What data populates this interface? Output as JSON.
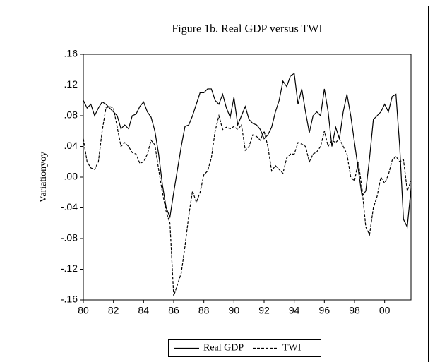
{
  "chart_data": {
    "type": "line",
    "title": "Figure 1b. Real GDP versus TWI",
    "y_label": "Variationyoy",
    "x": [
      1980,
      1980.25,
      1980.5,
      1980.75,
      1981,
      1981.25,
      1981.5,
      1981.75,
      1982,
      1982.25,
      1982.5,
      1982.75,
      1983,
      1983.25,
      1983.5,
      1983.75,
      1984,
      1984.25,
      1984.5,
      1984.75,
      1985,
      1985.25,
      1985.5,
      1985.75,
      1986,
      1986.25,
      1986.5,
      1986.75,
      1987,
      1987.25,
      1987.5,
      1987.75,
      1988,
      1988.25,
      1988.5,
      1988.75,
      1989,
      1989.25,
      1989.5,
      1989.75,
      1990,
      1990.25,
      1990.5,
      1990.75,
      1991,
      1991.25,
      1991.5,
      1991.75,
      1992,
      1992.25,
      1992.5,
      1992.75,
      1993,
      1993.25,
      1993.5,
      1993.75,
      1994,
      1994.25,
      1994.5,
      1994.75,
      1995,
      1995.25,
      1995.5,
      1995.75,
      1996,
      1996.25,
      1996.5,
      1996.75,
      1997,
      1997.25,
      1997.5,
      1997.75,
      1998,
      1998.25,
      1998.5,
      1998.75,
      1999,
      1999.25,
      1999.5,
      1999.75,
      2000,
      2000.25,
      2000.5,
      2000.75,
      2001,
      2001.25,
      2001.5,
      2001.75
    ],
    "series": [
      {
        "name": "Real GDP",
        "color": "#000000",
        "dash": "solid",
        "values": [
          0.1,
          0.09,
          0.095,
          0.08,
          0.09,
          0.098,
          0.095,
          0.09,
          0.085,
          0.08,
          0.063,
          0.068,
          0.063,
          0.08,
          0.082,
          0.092,
          0.098,
          0.085,
          0.078,
          0.06,
          0.03,
          -0.01,
          -0.04,
          -0.052,
          -0.02,
          0.01,
          0.04,
          0.066,
          0.068,
          0.08,
          0.095,
          0.11,
          0.11,
          0.115,
          0.115,
          0.1,
          0.095,
          0.108,
          0.09,
          0.078,
          0.104,
          0.068,
          0.08,
          0.092,
          0.075,
          0.07,
          0.068,
          0.062,
          0.05,
          0.055,
          0.065,
          0.085,
          0.1,
          0.125,
          0.118,
          0.132,
          0.135,
          0.095,
          0.115,
          0.085,
          0.058,
          0.08,
          0.085,
          0.08,
          0.115,
          0.085,
          0.04,
          0.065,
          0.05,
          0.085,
          0.108,
          0.08,
          0.045,
          0.01,
          -0.025,
          -0.018,
          0.025,
          0.075,
          0.08,
          0.085,
          0.095,
          0.085,
          0.105,
          0.108,
          0.04,
          -0.055,
          -0.065,
          -0.015
        ]
      },
      {
        "name": "TWI",
        "color": "#000000",
        "dash": "dashed",
        "values": [
          0.05,
          0.02,
          0.012,
          0.01,
          0.02,
          0.06,
          0.09,
          0.092,
          0.09,
          0.065,
          0.04,
          0.045,
          0.04,
          0.032,
          0.03,
          0.018,
          0.02,
          0.03,
          0.048,
          0.042,
          0.01,
          -0.02,
          -0.045,
          -0.06,
          -0.155,
          -0.14,
          -0.125,
          -0.09,
          -0.05,
          -0.018,
          -0.033,
          -0.02,
          0.003,
          0.008,
          0.025,
          0.06,
          0.08,
          0.062,
          0.065,
          0.063,
          0.066,
          0.062,
          0.068,
          0.035,
          0.04,
          0.055,
          0.053,
          0.048,
          0.06,
          0.04,
          0.008,
          0.015,
          0.01,
          0.005,
          0.025,
          0.03,
          0.03,
          0.045,
          0.043,
          0.04,
          0.02,
          0.03,
          0.033,
          0.04,
          0.06,
          0.04,
          0.048,
          0.045,
          0.05,
          0.04,
          0.03,
          0.0,
          -0.005,
          0.02,
          -0.015,
          -0.065,
          -0.075,
          -0.04,
          -0.025,
          0.0,
          -0.008,
          0.003,
          0.022,
          0.027,
          0.02,
          0.023,
          -0.018,
          -0.005
        ]
      }
    ],
    "xlim": [
      1980,
      2001.75
    ],
    "xticks": [
      {
        "value": 1980,
        "label": "80"
      },
      {
        "value": 1982,
        "label": "82"
      },
      {
        "value": 1984,
        "label": "84"
      },
      {
        "value": 1986,
        "label": "86"
      },
      {
        "value": 1988,
        "label": "88"
      },
      {
        "value": 1990,
        "label": "90"
      },
      {
        "value": 1992,
        "label": "92"
      },
      {
        "value": 1994,
        "label": "94"
      },
      {
        "value": 1996,
        "label": "96"
      },
      {
        "value": 1998,
        "label": "98"
      },
      {
        "value": 2000,
        "label": "00"
      }
    ],
    "ylim": [
      -0.16,
      0.16
    ],
    "yticks": [
      {
        "value": 0.16,
        "label": ".16"
      },
      {
        "value": 0.12,
        "label": ".12"
      },
      {
        "value": 0.08,
        "label": ".08"
      },
      {
        "value": 0.04,
        "label": ".04"
      },
      {
        "value": 0,
        "label": ".00"
      },
      {
        "value": -0.04,
        "label": "-.04"
      },
      {
        "value": -0.08,
        "label": "-.08"
      },
      {
        "value": -0.12,
        "label": "-.12"
      },
      {
        "value": -0.16,
        "label": "-.16"
      }
    ],
    "legend": "bottom"
  }
}
